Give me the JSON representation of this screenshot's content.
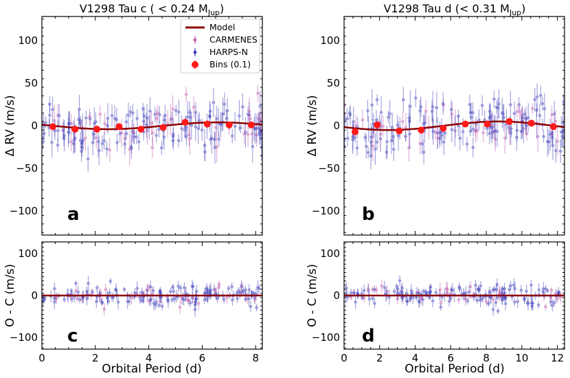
{
  "colors": {
    "model": "#8b0000",
    "carmenes": "#c060b0",
    "harps": "#3a3ab8",
    "bins": "#ff1a1a"
  },
  "legend": {
    "model": "Model",
    "carmenes": "CARMENES",
    "harps": "HARPS-N",
    "bins": "Bins (0.1)"
  },
  "chart_data": [
    {
      "id": "a",
      "type": "scatter",
      "title": "V1298 Tau c ( < 0.24 M",
      "title_sub": "Jup",
      "title_end": ")",
      "xlabel": "",
      "ylabel": "Δ RV (m/s)",
      "xlim": [
        0,
        8.25
      ],
      "ylim": [
        -128,
        128
      ],
      "xticks": [
        0,
        2,
        4,
        6,
        8
      ],
      "xticklabels": [],
      "yticks": [
        -100,
        -50,
        0,
        50,
        100
      ],
      "yticklabels": [
        "−100",
        "−50",
        "0",
        "50",
        "100"
      ],
      "panel_letter": "a",
      "model": {
        "amplitude": 4,
        "period": 8.25,
        "phase": 0.55
      },
      "bins": {
        "x": [
          0.41,
          1.24,
          2.06,
          2.89,
          3.71,
          4.54,
          5.36,
          6.19,
          7.01,
          7.84
        ],
        "y": [
          -1,
          -4,
          -4,
          -1,
          -4,
          -2,
          4,
          2,
          1,
          1
        ]
      },
      "scatter_scale": 14,
      "scatter_err": 12,
      "show_legend": true
    },
    {
      "id": "b",
      "type": "scatter",
      "title": "V1298 Tau d (< 0.31 M",
      "title_sub": "Jup",
      "title_end": ")",
      "xlabel": "",
      "ylabel": "Δ RV (m/s)",
      "xlim": [
        0,
        12.4
      ],
      "ylim": [
        -128,
        128
      ],
      "xticks": [
        0,
        2,
        4,
        6,
        8,
        10,
        12
      ],
      "xticklabels": [],
      "yticks": [
        -100,
        -50,
        0,
        50,
        100
      ],
      "yticklabels": [
        "−100",
        "−50",
        "0",
        "50",
        "100"
      ],
      "panel_letter": "b",
      "model": {
        "amplitude": 5,
        "period": 12.4,
        "phase": 0.45
      },
      "bins": {
        "x": [
          0.62,
          1.86,
          3.1,
          4.34,
          5.58,
          6.82,
          8.06,
          9.3,
          10.54,
          11.78
        ],
        "y": [
          -7,
          1,
          -6,
          -5,
          -3,
          2,
          2,
          5,
          3,
          -1
        ]
      },
      "scatter_scale": 14,
      "scatter_err": 12,
      "show_legend": false
    },
    {
      "id": "c",
      "type": "scatter",
      "title": "",
      "xlabel": "Orbital Period (d)",
      "ylabel": "O - C (m/s)",
      "xlim": [
        0,
        8.25
      ],
      "ylim": [
        -128,
        128
      ],
      "xticks": [
        0,
        2,
        4,
        6,
        8
      ],
      "xticklabels": [
        "0",
        "2",
        "4",
        "6",
        "8"
      ],
      "yticks": [
        -100,
        0,
        100
      ],
      "yticklabels": [
        "−100",
        "0",
        "100"
      ],
      "panel_letter": "c",
      "model": {
        "amplitude": 0,
        "period": 8.25,
        "phase": 0
      },
      "bins": {
        "x": [],
        "y": []
      },
      "scatter_scale": 13,
      "scatter_err": 11,
      "show_legend": false
    },
    {
      "id": "d",
      "type": "scatter",
      "title": "",
      "xlabel": "Orbital Period (d)",
      "ylabel": "O - C (m/s)",
      "xlim": [
        0,
        12.4
      ],
      "ylim": [
        -128,
        128
      ],
      "xticks": [
        0,
        2,
        4,
        6,
        8,
        10,
        12
      ],
      "xticklabels": [
        "0",
        "2",
        "4",
        "6",
        "8",
        "10",
        "12"
      ],
      "yticks": [
        -100,
        0,
        100
      ],
      "yticklabels": [
        "−100",
        "0",
        "100"
      ],
      "panel_letter": "d",
      "model": {
        "amplitude": 0,
        "period": 12.4,
        "phase": 0
      },
      "bins": {
        "x": [],
        "y": []
      },
      "scatter_scale": 13,
      "scatter_err": 11,
      "show_legend": false
    }
  ]
}
